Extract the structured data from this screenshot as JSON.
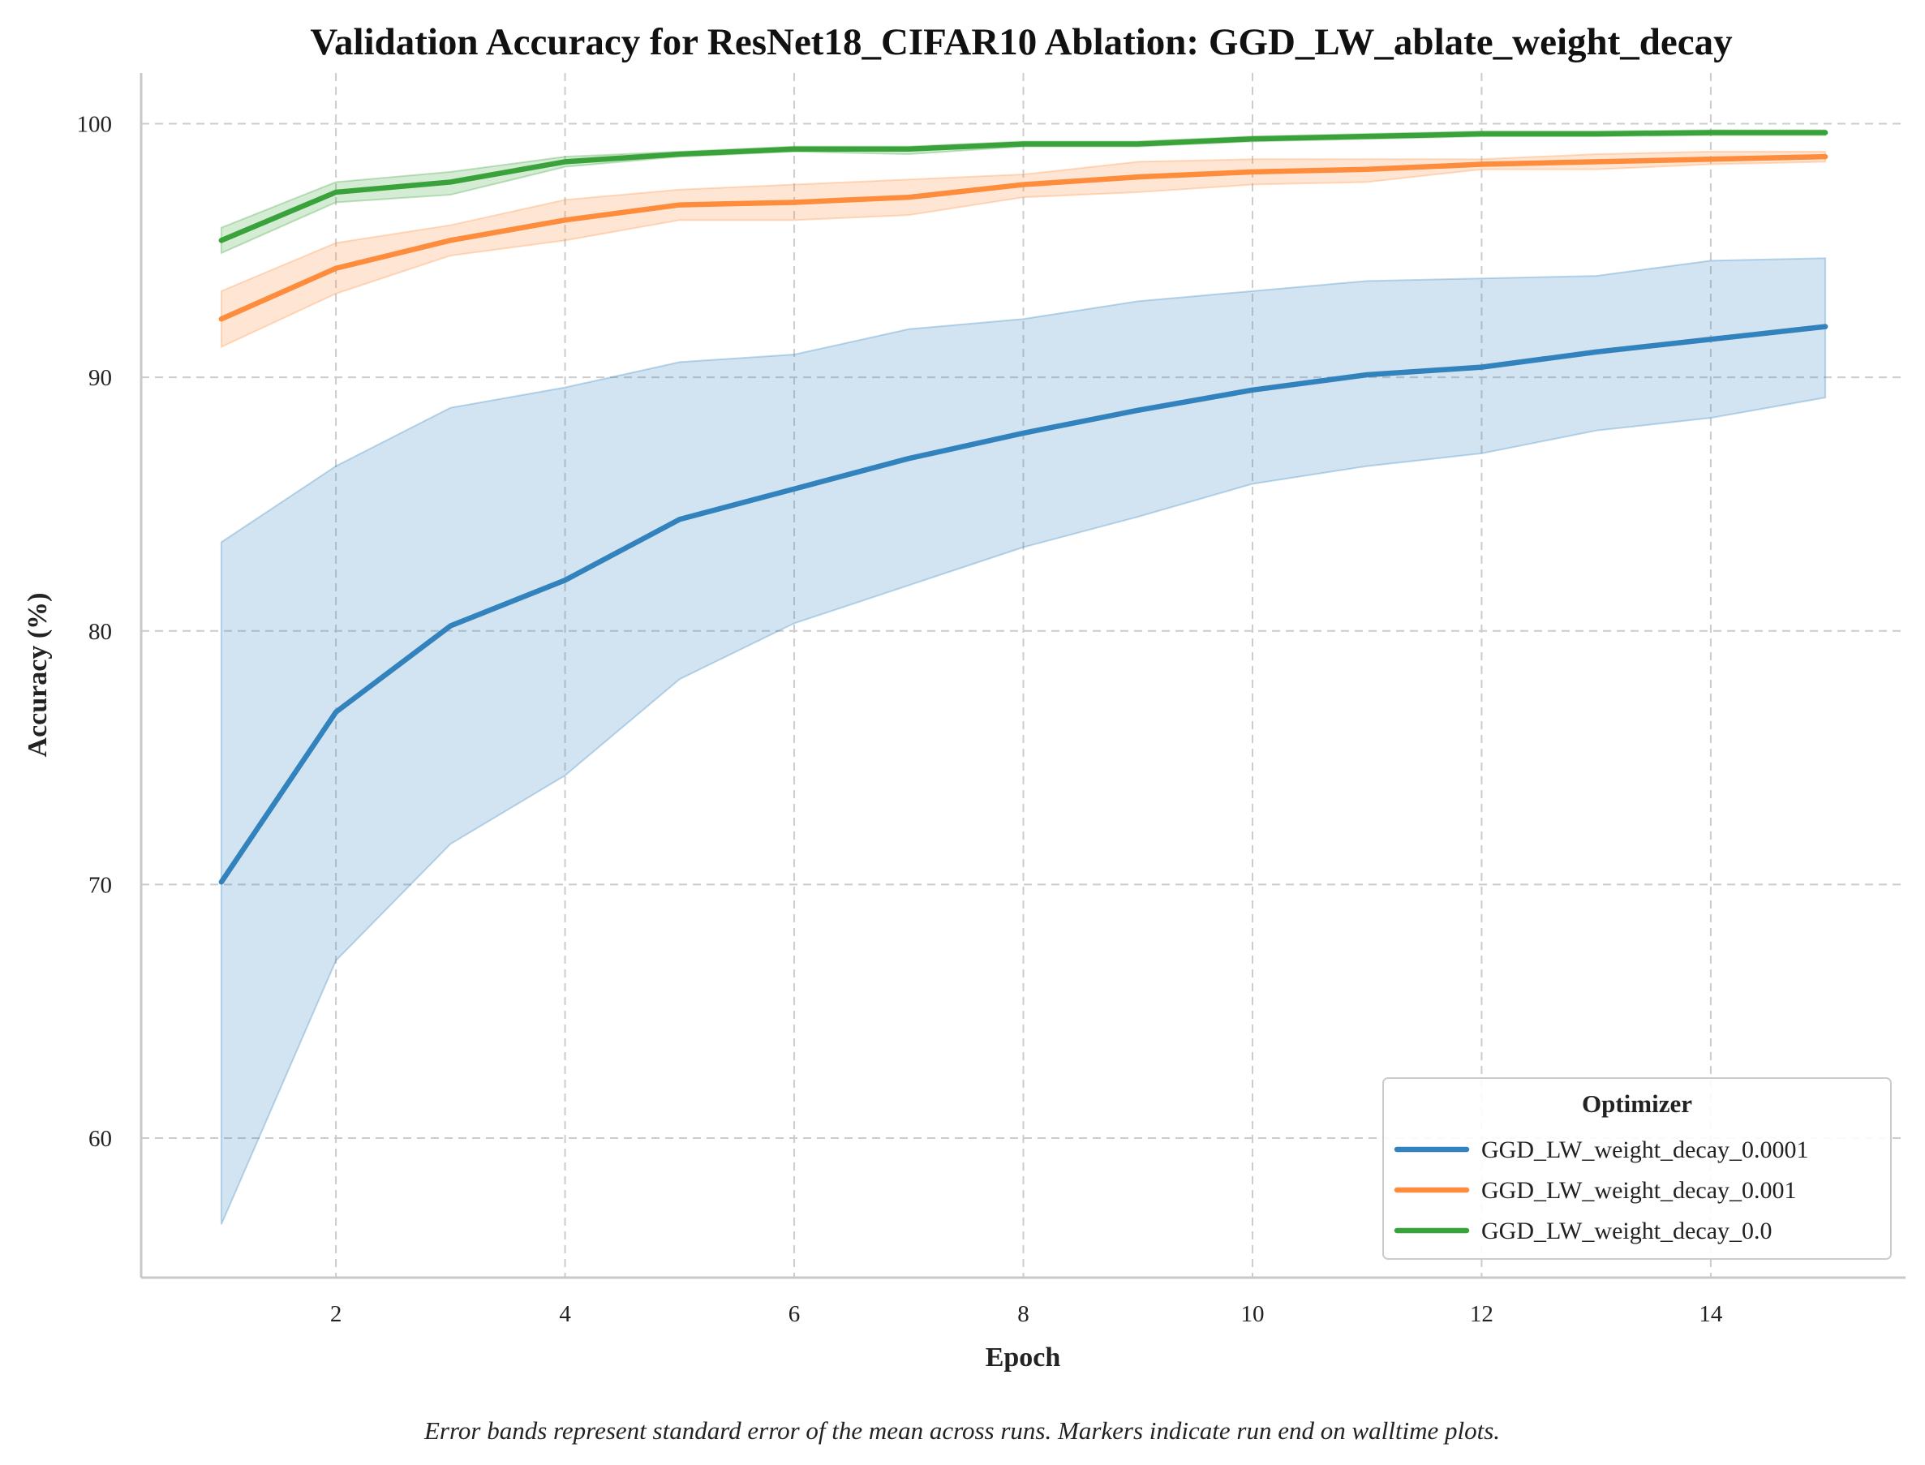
{
  "chart_data": {
    "type": "line",
    "title": "Validation Accuracy for ResNet18_CIFAR10 Ablation: GGD_LW_ablate_weight_decay",
    "xlabel": "Epoch",
    "ylabel": "Accuracy (%)",
    "caption": "Error bands represent standard error of the mean across runs. Markers indicate run end on walltime plots.",
    "xlim": [
      0.3,
      15.7
    ],
    "ylim": [
      54.5,
      102
    ],
    "xticks": [
      2,
      4,
      6,
      8,
      10,
      12,
      14
    ],
    "yticks": [
      60,
      70,
      80,
      90,
      100
    ],
    "grid": true,
    "legend": {
      "title": "Optimizer",
      "placement": "bottom-right"
    },
    "x": [
      1,
      2,
      3,
      4,
      5,
      6,
      7,
      8,
      9,
      10,
      11,
      12,
      13,
      14,
      15
    ],
    "series": [
      {
        "name": "GGD_LW_weight_decay_0.0001",
        "color": "#3182bd",
        "values": [
          70.1,
          76.8,
          80.2,
          82.0,
          84.4,
          85.6,
          86.8,
          87.8,
          88.7,
          89.5,
          90.1,
          90.4,
          91.0,
          91.5,
          92.0
        ],
        "lower": [
          56.6,
          67.0,
          71.6,
          74.3,
          78.1,
          80.3,
          81.8,
          83.3,
          84.5,
          85.8,
          86.5,
          87.0,
          87.9,
          88.4,
          89.2
        ],
        "upper": [
          83.5,
          86.5,
          88.8,
          89.6,
          90.6,
          90.9,
          91.9,
          92.3,
          93.0,
          93.4,
          93.8,
          93.9,
          94.0,
          94.6,
          94.7
        ]
      },
      {
        "name": "GGD_LW_weight_decay_0.001",
        "color": "#fd8d3c",
        "values": [
          92.3,
          94.3,
          95.4,
          96.2,
          96.8,
          96.9,
          97.1,
          97.6,
          97.9,
          98.1,
          98.2,
          98.4,
          98.5,
          98.6,
          98.7
        ],
        "lower": [
          91.2,
          93.3,
          94.8,
          95.4,
          96.2,
          96.2,
          96.4,
          97.1,
          97.3,
          97.6,
          97.7,
          98.2,
          98.2,
          98.4,
          98.5
        ],
        "upper": [
          93.4,
          95.3,
          96.0,
          97.0,
          97.4,
          97.6,
          97.8,
          98.0,
          98.5,
          98.6,
          98.6,
          98.6,
          98.8,
          98.9,
          98.9
        ]
      },
      {
        "name": "GGD_LW_weight_decay_0.0",
        "color": "#3aa23a",
        "values": [
          95.4,
          97.3,
          97.7,
          98.5,
          98.8,
          99.0,
          99.0,
          99.2,
          99.2,
          99.4,
          99.5,
          99.6,
          99.6,
          99.65,
          99.65
        ],
        "lower": [
          94.9,
          96.9,
          97.2,
          98.3,
          98.7,
          98.9,
          98.8,
          99.1,
          99.1,
          99.3,
          99.4,
          99.5,
          99.5,
          99.55,
          99.55
        ],
        "upper": [
          95.9,
          97.7,
          98.1,
          98.7,
          98.9,
          99.1,
          99.1,
          99.3,
          99.3,
          99.5,
          99.6,
          99.7,
          99.7,
          99.75,
          99.75
        ]
      }
    ]
  }
}
